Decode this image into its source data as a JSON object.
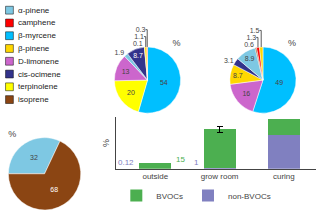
{
  "chart_data": [
    {
      "type": "bar",
      "stacked": true,
      "categories": [
        "outside",
        "grow room",
        "curing"
      ],
      "ylabel": "%",
      "ylim": [
        0,
        130
      ],
      "tick_labels": "x",
      "grid": false,
      "data_labels": true,
      "series": [
        {
          "name": "non-BVOCs",
          "color": "#8080C0",
          "values": [
            0.12,
            1,
            85
          ],
          "value_labels": [
            "0.12",
            "1",
            null
          ]
        },
        {
          "name": "BVOCs",
          "color": "#4CAF50",
          "values": [
            15,
            99,
            40
          ],
          "value_labels": [
            "15",
            null,
            null
          ],
          "error": [
            null,
            8,
            null
          ]
        }
      ]
    },
    {
      "type": "pie",
      "title": "%",
      "values": [
        54,
        20,
        13,
        1.9,
        8.7,
        0.1,
        1.1,
        0.3
      ],
      "colors": [
        "#00BFFF",
        "#FFFF00",
        "#CC66CC",
        "#7EC8E3",
        "#33338B",
        "#8B4513",
        "#FFD700",
        "#FF0000"
      ],
      "data_labels": true
    },
    {
      "type": "pie",
      "title": "%",
      "values": [
        49,
        16,
        8.7,
        3.1,
        8.9,
        0.6,
        1.3,
        1.5
      ],
      "colors": [
        "#00BFFF",
        "#CC66CC",
        "#FFD700",
        "#33338B",
        "#7EC8E3",
        "#8B4513",
        "#FF0000",
        "#FFD700"
      ],
      "data_labels": true
    },
    {
      "type": "pie",
      "title": "%",
      "values": [
        32,
        68
      ],
      "colors": [
        "#7EC8E3",
        "#8B4513"
      ],
      "data_labels": true
    },
    {
      "type": "legend",
      "series": [
        {
          "name": "α-pinene",
          "color": "#7EC8E3"
        },
        {
          "name": "camphene",
          "color": "#FF0000"
        },
        {
          "name": "β-myrcene",
          "color": "#00BFFF"
        },
        {
          "name": "β-pinene",
          "color": "#FFD700"
        },
        {
          "name": "D-limonene",
          "color": "#CC66CC"
        },
        {
          "name": "cis-ocimene",
          "color": "#33338B"
        },
        {
          "name": "terpinolene",
          "color": "#FFFF00"
        },
        {
          "name": "isoprene",
          "color": "#8B4513"
        }
      ]
    }
  ]
}
